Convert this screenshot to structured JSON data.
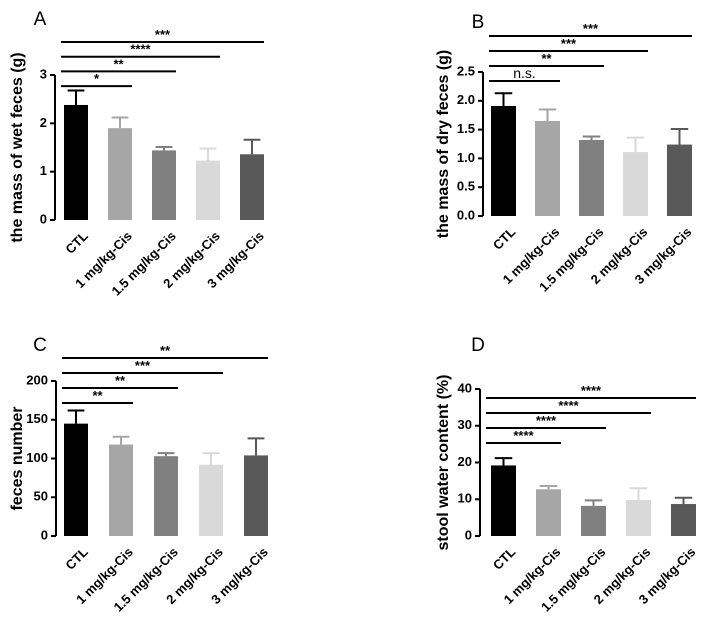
{
  "chart_data": [
    {
      "type": "bar",
      "panel_label": "A",
      "ylabel": "the mass of wet feces (g)",
      "categories": [
        "CTL",
        "1 mg/kg-Cis",
        "1.5 mg/kg-Cis",
        "2 mg/kg-Cis",
        "3 mg/kg-Cis"
      ],
      "values": [
        2.38,
        1.9,
        1.44,
        1.23,
        1.36
      ],
      "errors": [
        0.3,
        0.22,
        0.07,
        0.25,
        0.3
      ],
      "colors": [
        "#000000",
        "#a6a6a6",
        "#808080",
        "#d9d9d9",
        "#595959"
      ],
      "ylim": [
        0,
        3
      ],
      "yticks": [
        "0",
        "1",
        "2",
        "3"
      ],
      "significance": [
        {
          "to": 1,
          "label": "*"
        },
        {
          "to": 2,
          "label": "**"
        },
        {
          "to": 3,
          "label": "****"
        },
        {
          "to": 4,
          "label": "***"
        }
      ]
    },
    {
      "type": "bar",
      "panel_label": "B",
      "ylabel": "the mass of dry feces (g)",
      "categories": [
        "CTL",
        "1 mg/kg-Cis",
        "1.5 mg/kg-Cis",
        "2 mg/kg-Cis",
        "3 mg/kg-Cis"
      ],
      "values": [
        1.91,
        1.65,
        1.32,
        1.11,
        1.24
      ],
      "errors": [
        0.22,
        0.2,
        0.06,
        0.25,
        0.27
      ],
      "colors": [
        "#000000",
        "#a6a6a6",
        "#808080",
        "#d9d9d9",
        "#595959"
      ],
      "ylim": [
        0,
        2.5
      ],
      "yticks": [
        "0.0",
        "0.5",
        "1.0",
        "1.5",
        "2.0",
        "2.5"
      ],
      "significance": [
        {
          "to": 1,
          "label": "n.s."
        },
        {
          "to": 2,
          "label": "**"
        },
        {
          "to": 3,
          "label": "***"
        },
        {
          "to": 4,
          "label": "***"
        }
      ]
    },
    {
      "type": "bar",
      "panel_label": "C",
      "ylabel": "feces number",
      "categories": [
        "CTL",
        "1 mg/kg-Cis",
        "1.5 mg/kg-Cis",
        "2 mg/kg-Cis",
        "3 mg/kg-Cis"
      ],
      "values": [
        145,
        118,
        103,
        92,
        104
      ],
      "errors": [
        17,
        10,
        4,
        15,
        22
      ],
      "colors": [
        "#000000",
        "#a6a6a6",
        "#808080",
        "#d9d9d9",
        "#595959"
      ],
      "ylim": [
        0,
        200
      ],
      "yticks": [
        "0",
        "50",
        "100",
        "150",
        "200"
      ],
      "significance": [
        {
          "to": 1,
          "label": "**"
        },
        {
          "to": 2,
          "label": "**"
        },
        {
          "to": 3,
          "label": "***"
        },
        {
          "to": 4,
          "label": "**"
        }
      ]
    },
    {
      "type": "bar",
      "panel_label": "D",
      "ylabel": "stool water content (%)",
      "categories": [
        "CTL",
        "1 mg/kg-Cis",
        "1.5 mg/kg-Cis",
        "2 mg/kg-Cis",
        "3 mg/kg-Cis"
      ],
      "values": [
        19.2,
        12.7,
        8.2,
        9.8,
        8.7
      ],
      "errors": [
        2.0,
        0.9,
        1.5,
        3.2,
        1.7
      ],
      "colors": [
        "#000000",
        "#a6a6a6",
        "#808080",
        "#d9d9d9",
        "#595959"
      ],
      "ylim": [
        0,
        40
      ],
      "yticks": [
        "0",
        "10",
        "20",
        "30",
        "40"
      ],
      "significance": [
        {
          "to": 1,
          "label": "****"
        },
        {
          "to": 2,
          "label": "****"
        },
        {
          "to": 3,
          "label": "****"
        },
        {
          "to": 4,
          "label": "****"
        }
      ]
    }
  ]
}
